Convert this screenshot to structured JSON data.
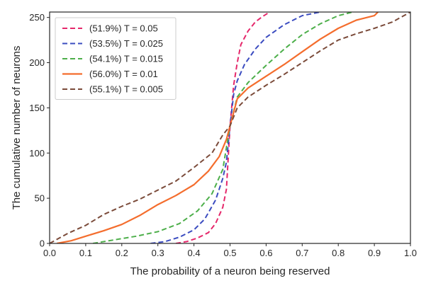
{
  "chart_data": {
    "type": "line",
    "title": "",
    "xlabel": "The probability of a neuron being reserved",
    "ylabel": "The cumulative number of neurons",
    "xlim": [
      0.0,
      1.0
    ],
    "ylim": [
      0,
      256
    ],
    "xticks": [
      "0.0",
      "0.1",
      "0.2",
      "0.3",
      "0.4",
      "0.5",
      "0.6",
      "0.7",
      "0.8",
      "0.9",
      "1.0"
    ],
    "yticks": [
      "0",
      "50",
      "100",
      "150",
      "200",
      "250"
    ],
    "grid": false,
    "legend_position": "top-left",
    "series": [
      {
        "name": "(51.9%) T = 0.05",
        "color": "#e5286b",
        "style": "dashed",
        "x": [
          0.35,
          0.38,
          0.41,
          0.44,
          0.46,
          0.48,
          0.49,
          0.5,
          0.51,
          0.52,
          0.53,
          0.55,
          0.57,
          0.59,
          0.61
        ],
        "y": [
          0,
          2,
          6,
          12,
          22,
          40,
          60,
          130,
          175,
          200,
          220,
          235,
          245,
          251,
          256
        ]
      },
      {
        "name": "(53.5%) T = 0.025",
        "color": "#3b4cc0",
        "style": "dashed",
        "x": [
          0.28,
          0.32,
          0.36,
          0.4,
          0.43,
          0.46,
          0.48,
          0.49,
          0.5,
          0.51,
          0.52,
          0.54,
          0.57,
          0.6,
          0.65,
          0.7,
          0.75
        ],
        "y": [
          0,
          2,
          7,
          15,
          27,
          48,
          72,
          90,
          130,
          165,
          180,
          198,
          215,
          228,
          242,
          252,
          256
        ]
      },
      {
        "name": "(54.1%) T = 0.015",
        "color": "#4daf4a",
        "style": "dashed",
        "x": [
          0.12,
          0.18,
          0.24,
          0.3,
          0.36,
          0.41,
          0.45,
          0.48,
          0.5,
          0.52,
          0.55,
          0.6,
          0.65,
          0.7,
          0.75,
          0.8,
          0.84
        ],
        "y": [
          0,
          4,
          8,
          13,
          22,
          36,
          55,
          82,
          130,
          162,
          178,
          197,
          215,
          231,
          243,
          252,
          256
        ]
      },
      {
        "name": "(56.0%) T = 0.01",
        "color": "#f46d2d",
        "style": "solid",
        "x": [
          0.02,
          0.06,
          0.1,
          0.15,
          0.2,
          0.25,
          0.3,
          0.35,
          0.4,
          0.44,
          0.47,
          0.49,
          0.5,
          0.52,
          0.55,
          0.6,
          0.65,
          0.7,
          0.75,
          0.8,
          0.85,
          0.9,
          0.91
        ],
        "y": [
          0,
          3,
          8,
          14,
          21,
          31,
          43,
          53,
          65,
          80,
          96,
          115,
          130,
          160,
          172,
          185,
          198,
          212,
          226,
          238,
          247,
          252,
          256
        ]
      },
      {
        "name": "(55.1%) T = 0.005",
        "color": "#7b4b3a",
        "style": "dashed",
        "x": [
          0.0,
          0.05,
          0.1,
          0.15,
          0.2,
          0.25,
          0.3,
          0.35,
          0.4,
          0.45,
          0.48,
          0.5,
          0.52,
          0.55,
          0.6,
          0.65,
          0.7,
          0.75,
          0.8,
          0.85,
          0.9,
          0.95,
          1.0
        ],
        "y": [
          0,
          11,
          20,
          32,
          41,
          49,
          59,
          69,
          84,
          100,
          120,
          130,
          150,
          162,
          175,
          187,
          200,
          213,
          225,
          232,
          238,
          245,
          256
        ]
      }
    ]
  }
}
